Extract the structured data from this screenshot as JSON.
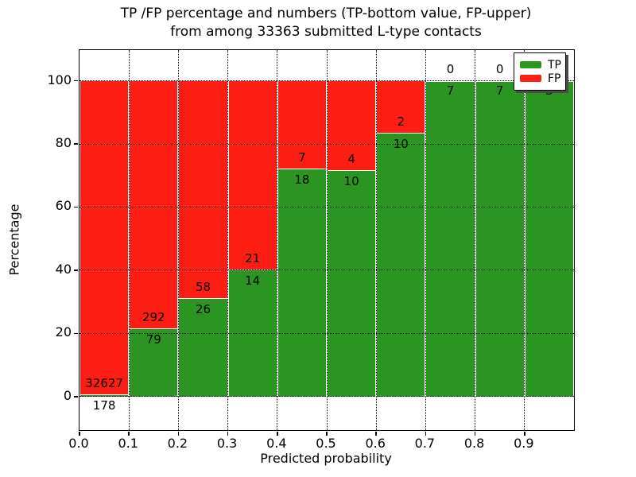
{
  "chart_data": {
    "type": "bar",
    "stacked": true,
    "title_line1": "TP /FP percentage and numbers (TP-bottom value, FP-upper)",
    "title_line2": "from among 33363 submitted L-type contacts",
    "xlabel": "Predicted probability",
    "ylabel": "Percentage",
    "x_tick_labels": [
      "0.0",
      "0.1",
      "0.2",
      "0.3",
      "0.4",
      "0.5",
      "0.6",
      "0.7",
      "0.8",
      "0.9"
    ],
    "y_ticks": [
      0,
      20,
      40,
      60,
      80,
      100
    ],
    "xlim": [
      0.0,
      1.0
    ],
    "ylim": [
      -10.6,
      109.7
    ],
    "grid": "dotted both axes",
    "colors": {
      "tp": "#2A9621",
      "fp": "#FC1D13",
      "bar_edge": "#ffffff"
    },
    "legend": {
      "position": "upper right",
      "entries": [
        {
          "label": "TP",
          "color": "#2A9621"
        },
        {
          "label": "FP",
          "color": "#FC1D13"
        }
      ]
    },
    "bins": [
      {
        "range": [
          0.0,
          0.1
        ],
        "tp": 178,
        "fp": 32627,
        "tp_pct": 0.54
      },
      {
        "range": [
          0.1,
          0.2
        ],
        "tp": 79,
        "fp": 292,
        "tp_pct": 21.29
      },
      {
        "range": [
          0.2,
          0.3
        ],
        "tp": 26,
        "fp": 58,
        "tp_pct": 30.95
      },
      {
        "range": [
          0.3,
          0.4
        ],
        "tp": 14,
        "fp": 21,
        "tp_pct": 40.0
      },
      {
        "range": [
          0.4,
          0.5
        ],
        "tp": 18,
        "fp": 7,
        "tp_pct": 72.0
      },
      {
        "range": [
          0.5,
          0.6
        ],
        "tp": 10,
        "fp": 4,
        "tp_pct": 71.43
      },
      {
        "range": [
          0.6,
          0.7
        ],
        "tp": 10,
        "fp": 2,
        "tp_pct": 83.33
      },
      {
        "range": [
          0.7,
          0.8
        ],
        "tp": 7,
        "fp": 0,
        "tp_pct": 100
      },
      {
        "range": [
          0.8,
          0.9
        ],
        "tp": 7,
        "fp": 0,
        "tp_pct": 100
      },
      {
        "range": [
          0.9,
          1.0
        ],
        "tp": 3,
        "fp": 0,
        "tp_pct": 100
      }
    ],
    "total_contacts": 33363
  }
}
